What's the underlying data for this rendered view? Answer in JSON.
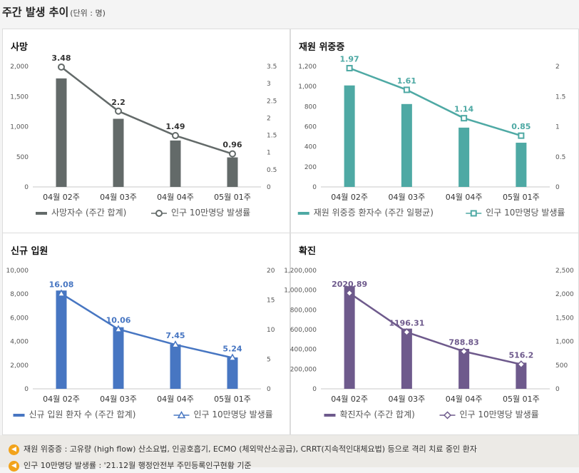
{
  "header": {
    "title": "주간 발생 추이",
    "unit": "(단위 : 명)"
  },
  "colors": {
    "death": "#636a69",
    "severe": "#4ea9a4",
    "hospital": "#4776c2",
    "confirmed": "#6e5a8c"
  },
  "chart_data": [
    {
      "key": "death",
      "type": "bar+line",
      "title": "사망",
      "categories": [
        "04월 02주",
        "04월 03주",
        "04월 04주",
        "05월 01주"
      ],
      "bar_series": {
        "name": "사망자수 (주간 합계)",
        "values": [
          1800,
          1130,
          770,
          490
        ]
      },
      "line_series": {
        "name": "인구 10만명당 발생률",
        "values": [
          3.48,
          2.2,
          1.49,
          0.96
        ]
      },
      "y_left": {
        "min": 0,
        "max": 2000,
        "ticks": [
          0,
          500,
          1000,
          1500,
          2000
        ],
        "tick_labels": [
          "0",
          "500",
          "1,000",
          "1,500",
          "2,000"
        ]
      },
      "y_right": {
        "min": 0,
        "max": 3.5,
        "ticks": [
          0,
          0.5,
          1,
          1.5,
          2,
          2.5,
          3,
          3.5
        ],
        "tick_labels": [
          "0",
          "0.5",
          "1",
          "1.5",
          "2",
          "2.5",
          "3",
          "3.5"
        ]
      },
      "marker": "circle"
    },
    {
      "key": "severe",
      "type": "bar+line",
      "title": "재원 위중증",
      "categories": [
        "04월 02주",
        "04월 03주",
        "04월 04주",
        "05월 01주"
      ],
      "bar_series": {
        "name": "재원 위중증 환자수 (주간 일평균)",
        "values": [
          1010,
          825,
          590,
          440
        ]
      },
      "line_series": {
        "name": "인구 10만명당 발생률",
        "values": [
          1.97,
          1.61,
          1.14,
          0.85
        ]
      },
      "y_left": {
        "min": 0,
        "max": 1200,
        "ticks": [
          0,
          200,
          400,
          600,
          800,
          1000,
          1200
        ],
        "tick_labels": [
          "0",
          "200",
          "400",
          "600",
          "800",
          "1,000",
          "1,200"
        ]
      },
      "y_right": {
        "min": 0,
        "max": 2,
        "ticks": [
          0,
          0.5,
          1,
          1.5,
          2
        ],
        "tick_labels": [
          "0",
          "0.5",
          "1",
          "1.5",
          "2"
        ]
      },
      "marker": "square"
    },
    {
      "key": "hospital",
      "type": "bar+line",
      "title": "신규 입원",
      "categories": [
        "04월 02주",
        "04월 03주",
        "04월 04주",
        "05월 01주"
      ],
      "bar_series": {
        "name": "신규 입원 환자 수 (주간 합계)",
        "values": [
          8300,
          5200,
          3750,
          2650
        ]
      },
      "line_series": {
        "name": "인구 10만명당 발생률",
        "values": [
          16.08,
          10.06,
          7.45,
          5.24
        ]
      },
      "y_left": {
        "min": 0,
        "max": 10000,
        "ticks": [
          0,
          2000,
          4000,
          6000,
          8000,
          10000
        ],
        "tick_labels": [
          "0",
          "2,000",
          "4,000",
          "6,000",
          "8,000",
          "10,000"
        ]
      },
      "y_right": {
        "min": 0,
        "max": 20,
        "ticks": [
          0,
          5,
          10,
          15,
          20
        ],
        "tick_labels": [
          "0",
          "5",
          "10",
          "15",
          "20"
        ]
      },
      "marker": "triangle"
    },
    {
      "key": "confirmed",
      "type": "bar+line",
      "title": "확진",
      "categories": [
        "04월 02주",
        "04월 03주",
        "04월 04주",
        "05월 01주"
      ],
      "bar_series": {
        "name": "확진자수 (주간 합계)",
        "values": [
          1040000,
          610000,
          405000,
          265000
        ]
      },
      "line_series": {
        "name": "인구 10만명당 발생률",
        "values": [
          2020.89,
          1196.31,
          788.83,
          516.2
        ]
      },
      "y_left": {
        "min": 0,
        "max": 1200000,
        "ticks": [
          0,
          200000,
          400000,
          600000,
          800000,
          1000000,
          1200000
        ],
        "tick_labels": [
          "0",
          "200,000",
          "400,000",
          "600,000",
          "800,000",
          "1,000,000",
          "1,200,000"
        ]
      },
      "y_right": {
        "min": 0,
        "max": 2500,
        "ticks": [
          0,
          500,
          1000,
          1500,
          2000,
          2500
        ],
        "tick_labels": [
          "0",
          "500",
          "1,000",
          "1,500",
          "2,000",
          "2,500"
        ]
      },
      "marker": "diamond"
    }
  ],
  "footer": {
    "note1": "재원 위중증 : 고유량 (high flow) 산소요법, 인공호흡기, ECMO (체외막산소공급), CRRT(지속적인대체요법) 등으로 격리 치료 중인 환자",
    "note2": "인구 10만명당 발생률 : '21.12월 행정안전부 주민등록인구현황 기준"
  }
}
